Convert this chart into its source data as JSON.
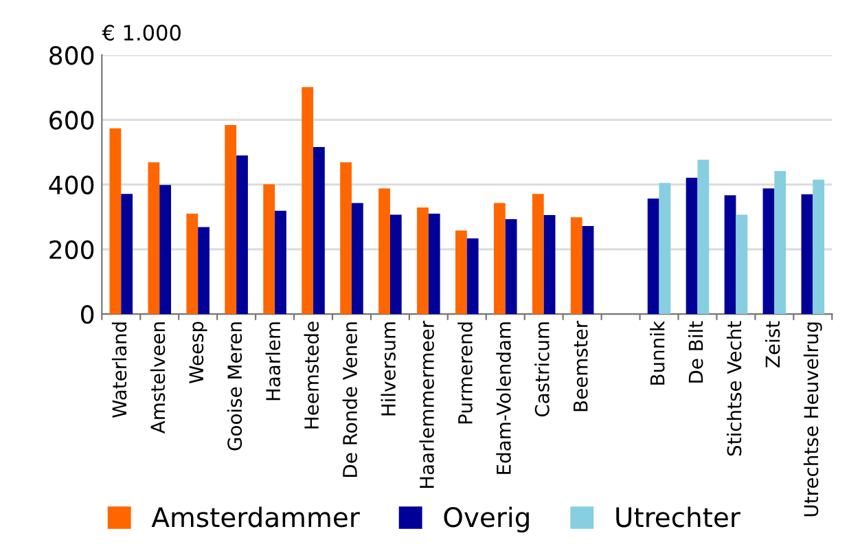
{
  "chart_data": {
    "type": "bar",
    "ylabel": "€ 1.000",
    "categories": [
      "Waterland",
      "Amstelveen",
      "Weesp",
      "Gooise Meren",
      "Haarlem",
      "Heemstede",
      "De Ronde Venen",
      "Hilversum",
      "Haarlemmermeer",
      "Purmerend",
      "Edam-Volendam",
      "Castricum",
      "Beemster",
      null,
      "Bunnik",
      "De Bilt",
      "Stichtse Vecht",
      "Zeist",
      "Utrechtse Heuvelrug"
    ],
    "series": [
      {
        "name": "Amsterdammer",
        "color": "#ff6600",
        "values": [
          574,
          469,
          310,
          584,
          401,
          701,
          469,
          388,
          329,
          258,
          343,
          371,
          299,
          null,
          null,
          null,
          null,
          null,
          null
        ]
      },
      {
        "name": "Overig",
        "color": "#000099",
        "values": [
          371,
          399,
          269,
          490,
          319,
          516,
          343,
          307,
          310,
          234,
          293,
          306,
          272,
          null,
          357,
          421,
          367,
          388,
          370
        ]
      },
      {
        "name": "Utrechter",
        "color": "#87cee0",
        "values": [
          null,
          null,
          null,
          null,
          null,
          null,
          null,
          null,
          null,
          null,
          null,
          null,
          null,
          null,
          405,
          477,
          307,
          442,
          415
        ]
      }
    ],
    "ylim": [
      0,
      800
    ],
    "yticks": [
      0,
      200,
      400,
      600,
      800
    ],
    "grid": "y",
    "legend": "bottom"
  }
}
